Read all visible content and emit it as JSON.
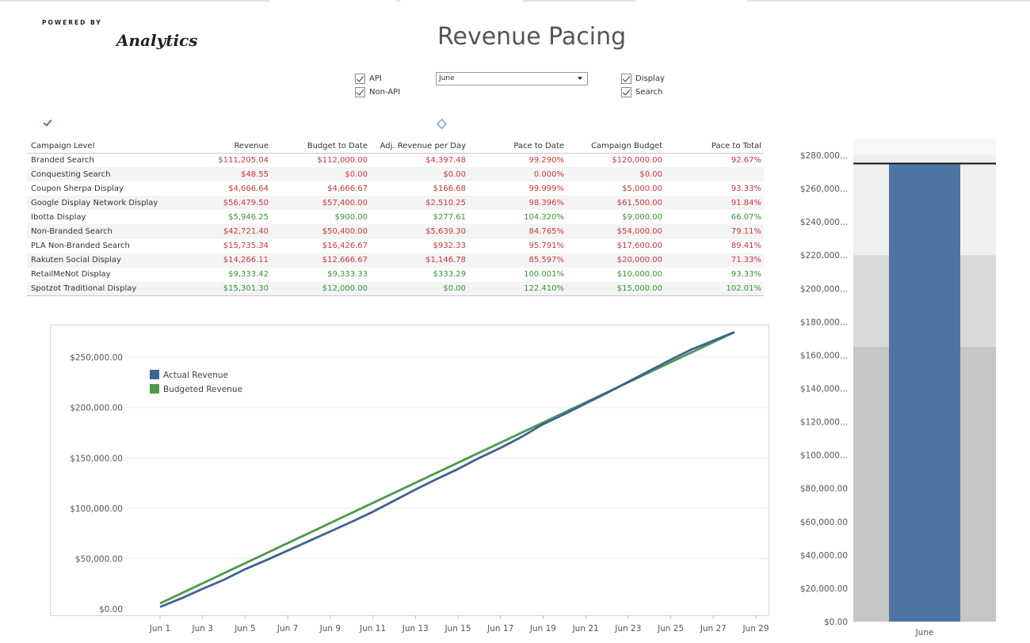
{
  "header": {
    "powered_by": "POWERED BY",
    "brand": "Analytics",
    "title": "Revenue Pacing"
  },
  "filters": {
    "api": "API",
    "non_api": "Non-API",
    "month_select": "June",
    "display": "Display",
    "search": "Search"
  },
  "table": {
    "columns": [
      "Campaign Level",
      "Revenue",
      "Budget to Date",
      "Adj. Revenue per Day",
      "Pace to Date",
      "Campaign Budget",
      "Pace to Total"
    ],
    "rows": [
      {
        "name": "Branded Search",
        "revenue": "$111,205.04",
        "budget_to_date": "$112,000.00",
        "adj_rev_per_day": "$4,397.48",
        "pace_to_date": "99.290%",
        "campaign_budget": "$120,000.00",
        "pace_to_total": "92.67%",
        "status": "neg"
      },
      {
        "name": "Conquesting Search",
        "revenue": "$48.55",
        "budget_to_date": "$0.00",
        "adj_rev_per_day": "$0.00",
        "pace_to_date": "0.000%",
        "campaign_budget": "$0.00",
        "pace_to_total": "",
        "status": "neg"
      },
      {
        "name": "Coupon Sherpa Display",
        "revenue": "$4,666.64",
        "budget_to_date": "$4,666.67",
        "adj_rev_per_day": "$166.68",
        "pace_to_date": "99.999%",
        "campaign_budget": "$5,000.00",
        "pace_to_total": "93.33%",
        "status": "neg"
      },
      {
        "name": "Google Display Network Display",
        "revenue": "$56,479.50",
        "budget_to_date": "$57,400.00",
        "adj_rev_per_day": "$2,510.25",
        "pace_to_date": "98.396%",
        "campaign_budget": "$61,500.00",
        "pace_to_total": "91.84%",
        "status": "neg"
      },
      {
        "name": "Ibotta Display",
        "revenue": "$5,946.25",
        "budget_to_date": "$900.00",
        "adj_rev_per_day": "$277.61",
        "pace_to_date": "104.320%",
        "campaign_budget": "$9,000.00",
        "pace_to_total": "66.07%",
        "status": "pos"
      },
      {
        "name": "Non-Branded Search",
        "revenue": "$42,721.40",
        "budget_to_date": "$50,400.00",
        "adj_rev_per_day": "$5,639.30",
        "pace_to_date": "84.765%",
        "campaign_budget": "$54,000.00",
        "pace_to_total": "79.11%",
        "status": "neg"
      },
      {
        "name": "PLA Non-Branded Search",
        "revenue": "$15,735.34",
        "budget_to_date": "$16,426.67",
        "adj_rev_per_day": "$932.33",
        "pace_to_date": "95.791%",
        "campaign_budget": "$17,600.00",
        "pace_to_total": "89.41%",
        "status": "neg"
      },
      {
        "name": "Rakuten Social Display",
        "revenue": "$14,266.11",
        "budget_to_date": "$12,666.67",
        "adj_rev_per_day": "$1,146.78",
        "pace_to_date": "85.597%",
        "campaign_budget": "$20,000.00",
        "pace_to_total": "71.33%",
        "status": "neg"
      },
      {
        "name": "RetailMeNot Display",
        "revenue": "$9,333.42",
        "budget_to_date": "$9,333.33",
        "adj_rev_per_day": "$333.29",
        "pace_to_date": "100.001%",
        "campaign_budget": "$10,000.00",
        "pace_to_total": "93.33%",
        "status": "pos"
      },
      {
        "name": "Spotzot Traditional Display",
        "revenue": "$15,301.30",
        "budget_to_date": "$12,000.00",
        "adj_rev_per_day": "$0.00",
        "pace_to_date": "122.410%",
        "campaign_budget": "$15,000.00",
        "pace_to_total": "102.01%",
        "status": "pos"
      }
    ]
  },
  "chart_data": [
    {
      "type": "line",
      "x_labels": [
        "Jun 1",
        "Jun 3",
        "Jun 5",
        "Jun 7",
        "Jun 9",
        "Jun 11",
        "Jun 13",
        "Jun 15",
        "Jun 17",
        "Jun 19",
        "Jun 21",
        "Jun 23",
        "Jun 25",
        "Jun 27",
        "Jun 29"
      ],
      "x_min_day": 1,
      "x_max_day": 29,
      "ylim": [
        0,
        280000
      ],
      "y_ticks": [
        0,
        50000,
        100000,
        150000,
        200000,
        250000
      ],
      "y_tick_labels": [
        "$0.00",
        "$50,000.00",
        "$100,000.00",
        "$150,000.00",
        "$200,000.00",
        "$250,000.00"
      ],
      "legend": "top-left",
      "series": [
        {
          "name": "Actual Revenue",
          "color": "#3e6396",
          "x": [
            1,
            2,
            3,
            4,
            5,
            6,
            7,
            8,
            9,
            10,
            11,
            12,
            13,
            14,
            15,
            16,
            17,
            18,
            19,
            20,
            21,
            22,
            23,
            24,
            25,
            26,
            27,
            28
          ],
          "values": [
            2000,
            10500,
            20000,
            29000,
            39500,
            48500,
            58000,
            67500,
            77000,
            86500,
            96500,
            107500,
            118500,
            129000,
            139000,
            150000,
            160000,
            171000,
            183500,
            193500,
            204000,
            214500,
            225500,
            236500,
            247500,
            258000,
            266500,
            275000
          ]
        },
        {
          "name": "Budgeted Revenue",
          "color": "#4f9a4a",
          "x": [
            1,
            28
          ],
          "values": [
            5500,
            275000
          ]
        }
      ]
    },
    {
      "type": "bar",
      "categories": [
        "June"
      ],
      "values": [
        274500
      ],
      "target": 275000,
      "bands": [
        165000,
        220000,
        280000
      ],
      "ylim": [
        0,
        290000
      ],
      "y_ticks": [
        0,
        20000,
        40000,
        60000,
        80000,
        100000,
        120000,
        140000,
        160000,
        180000,
        200000,
        220000,
        240000,
        260000,
        280000
      ],
      "y_tick_labels": [
        "$0.00",
        "$20,000.00",
        "$40,000.00",
        "$60,000.00",
        "$80,000.00",
        "$100,000...",
        "$120,000...",
        "$140,000...",
        "$160,000...",
        "$180,000...",
        "$200,000...",
        "$220,000...",
        "$240,000...",
        "$260,000...",
        "$280,000..."
      ],
      "bar_color": "#4f76a3"
    }
  ]
}
